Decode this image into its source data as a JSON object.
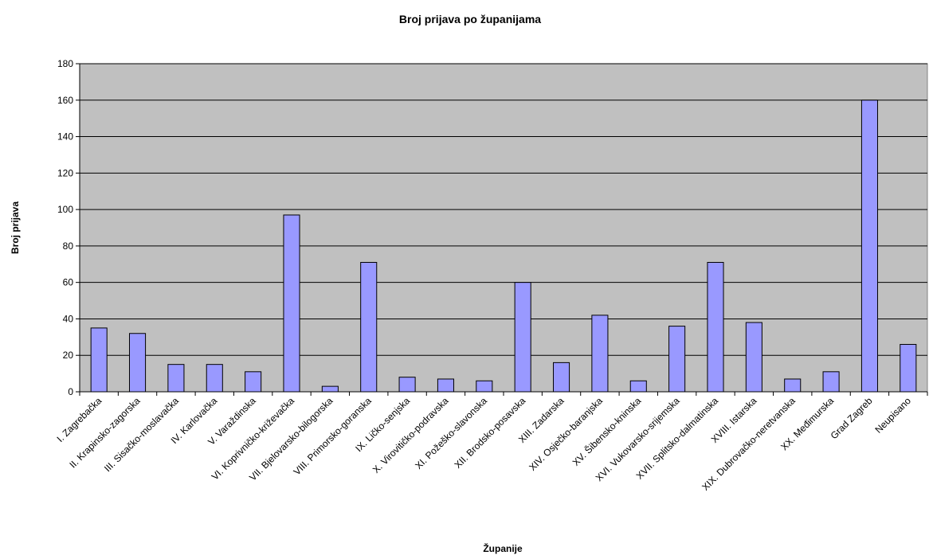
{
  "chart_data": {
    "type": "bar",
    "title": "Broj prijava po županijama",
    "xlabel": "Županije",
    "ylabel": "Broj prijava",
    "ylim": [
      0,
      180
    ],
    "yticks": [
      0,
      20,
      40,
      60,
      80,
      100,
      120,
      140,
      160,
      180
    ],
    "grid": true,
    "legend": "none",
    "categories": [
      "I. Zagrebačka",
      "II. Krapinsko-zagorska",
      "III. Sisačko-moslavačka",
      "IV. Karlovačka",
      "V. Varaždinska",
      "VI. Koprivničko-križevačka",
      "VII. Bjelovarsko-bilogorska",
      "VIII. Primorsko-goranska",
      "IX. Ličko-senjska",
      "X. Virovitičko-podravska",
      "XI. Požeško-slavonska",
      "XII. Brodsko-posavska",
      "XIII. Zadarska",
      "XIV. Osječko-baranjska",
      "XV. Šibensko-kninska",
      "XVI. Vukovarsko-srijemska",
      "XVII. Splitsko-dalmatinska",
      "XVIII. Istarska",
      "XIX. Dubrovačko-neretvanska",
      "XX. Međimurska",
      "Grad Zagreb",
      "Neupisano"
    ],
    "values": [
      35,
      32,
      15,
      15,
      11,
      97,
      3,
      71,
      8,
      7,
      6,
      60,
      16,
      42,
      6,
      36,
      71,
      38,
      7,
      11,
      160,
      26
    ],
    "colors": {
      "plot_background": "#c0c0c0",
      "bar_fill": "#9999ff",
      "bar_stroke": "#000000",
      "gridline": "#000000"
    }
  }
}
